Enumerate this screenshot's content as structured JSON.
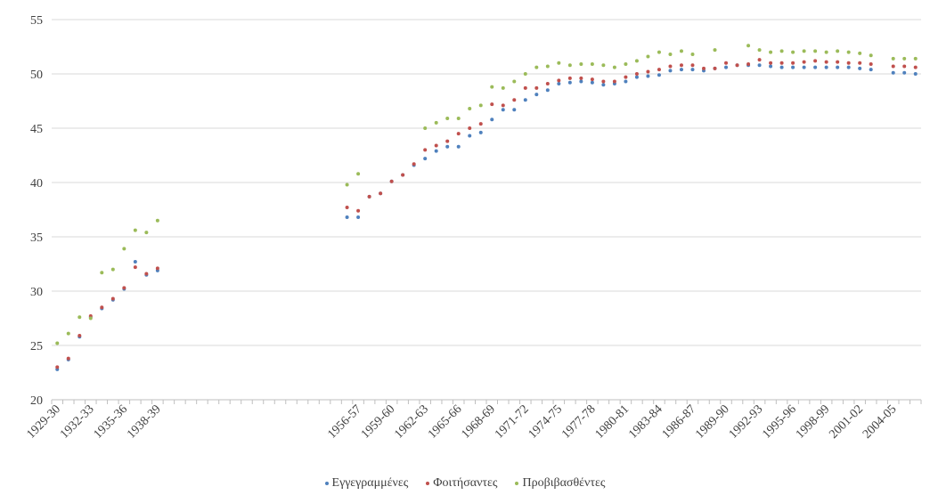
{
  "chart_data": {
    "type": "scatter",
    "title": "",
    "xlabel": "",
    "ylabel": "",
    "ylim": [
      20,
      55
    ],
    "yticks": [
      20,
      25,
      30,
      35,
      40,
      45,
      50,
      55
    ],
    "grid": true,
    "legend_position": "bottom",
    "categories": [
      "1929-30",
      "1930-31",
      "1931-32",
      "1932-33",
      "1933-34",
      "1934-35",
      "1935-36",
      "1936-37",
      "1937-38",
      "1938-39",
      "1939-40",
      "1940-41",
      "1941-42",
      "1942-43",
      "1943-44",
      "1944-45",
      "1945-46",
      "1946-47",
      "1947-48",
      "1948-49",
      "1949-50",
      "1950-51",
      "1951-52",
      "1952-53",
      "1953-54",
      "1954-55",
      "1955-56",
      "1956-57",
      "1957-58",
      "1958-59",
      "1959-60",
      "1960-61",
      "1961-62",
      "1962-63",
      "1963-64",
      "1964-65",
      "1965-66",
      "1966-67",
      "1967-68",
      "1968-69",
      "1969-70",
      "1970-71",
      "1971-72",
      "1972-73",
      "1973-74",
      "1974-75",
      "1975-76",
      "1976-77",
      "1977-78",
      "1978-79",
      "1979-80",
      "1980-81",
      "1981-82",
      "1982-83",
      "1983-84",
      "1984-85",
      "1985-86",
      "1986-87",
      "1987-88",
      "1988-89",
      "1989-90",
      "1990-91",
      "1991-92",
      "1992-93",
      "1993-94",
      "1994-95",
      "1995-96",
      "1996-97",
      "1997-98",
      "1998-99",
      "1999-00",
      "2000-01",
      "2001-02",
      "2002-03",
      "2003-04",
      "2004-05",
      "2005-06",
      "2006-07"
    ],
    "tick_labels": [
      "1929-30",
      "1932-33",
      "1935-36",
      "1938-39",
      "1956-57",
      "1959-60",
      "1962-63",
      "1965-66",
      "1968-69",
      "1971-72",
      "1974-75",
      "1977-78",
      "1980-81",
      "1983-84",
      "1986-87",
      "1989-90",
      "1992-93",
      "1995-96",
      "1998-99",
      "2001-02",
      "2004-05"
    ],
    "series": [
      {
        "name": "Εγγεγραμμένες",
        "color": "#4f81bd",
        "values": [
          22.8,
          23.7,
          25.8,
          27.6,
          28.4,
          29.2,
          30.2,
          32.7,
          31.5,
          31.9,
          null,
          null,
          null,
          null,
          null,
          null,
          null,
          null,
          null,
          null,
          null,
          null,
          null,
          null,
          null,
          null,
          36.8,
          36.8,
          38.7,
          39.0,
          40.1,
          40.7,
          41.6,
          42.2,
          42.9,
          43.3,
          43.3,
          44.3,
          44.6,
          45.8,
          46.7,
          46.7,
          47.6,
          48.1,
          48.5,
          49.1,
          49.2,
          49.3,
          49.2,
          49.0,
          49.1,
          49.3,
          49.7,
          49.8,
          49.9,
          50.3,
          50.4,
          50.4,
          50.3,
          50.5,
          50.6,
          50.8,
          50.8,
          50.8,
          50.7,
          50.6,
          50.6,
          50.6,
          50.6,
          50.6,
          50.6,
          50.6,
          50.5,
          50.4,
          null,
          50.1,
          50.1,
          50.0
        ]
      },
      {
        "name": "Φοιτήσαντες",
        "color": "#c0504d",
        "values": [
          23.0,
          23.8,
          25.9,
          27.7,
          28.5,
          29.3,
          30.3,
          32.2,
          31.6,
          32.1,
          null,
          null,
          null,
          null,
          null,
          null,
          null,
          null,
          null,
          null,
          null,
          null,
          null,
          null,
          null,
          null,
          37.7,
          37.4,
          38.7,
          39.0,
          40.1,
          40.7,
          41.7,
          43.0,
          43.4,
          43.8,
          44.5,
          45.0,
          45.4,
          47.2,
          47.1,
          47.6,
          48.7,
          48.7,
          49.1,
          49.4,
          49.6,
          49.6,
          49.5,
          49.3,
          49.3,
          49.7,
          50.0,
          50.2,
          50.4,
          50.7,
          50.8,
          50.8,
          50.5,
          50.5,
          51.0,
          50.8,
          50.9,
          51.3,
          51.0,
          51.0,
          51.0,
          51.1,
          51.2,
          51.1,
          51.1,
          51.0,
          51.0,
          50.9,
          null,
          50.7,
          50.7,
          50.6
        ]
      },
      {
        "name": "Προβιβασθέντες",
        "color": "#9bbb59",
        "values": [
          25.2,
          26.1,
          27.6,
          27.5,
          31.7,
          32.0,
          33.9,
          35.6,
          35.4,
          36.5,
          null,
          null,
          null,
          null,
          null,
          null,
          null,
          null,
          null,
          null,
          null,
          null,
          null,
          null,
          null,
          null,
          39.8,
          40.8,
          null,
          null,
          null,
          null,
          null,
          45.0,
          45.5,
          45.9,
          45.9,
          46.8,
          47.1,
          48.8,
          48.7,
          49.3,
          50.0,
          50.6,
          50.7,
          51.0,
          50.8,
          50.9,
          50.9,
          50.8,
          50.6,
          50.9,
          51.2,
          51.6,
          52.0,
          51.8,
          52.1,
          51.8,
          null,
          52.2,
          null,
          null,
          52.6,
          52.2,
          52.0,
          52.1,
          52.0,
          52.1,
          52.1,
          52.0,
          52.1,
          52.0,
          51.9,
          51.7,
          null,
          51.4,
          51.4,
          51.4
        ]
      }
    ]
  }
}
